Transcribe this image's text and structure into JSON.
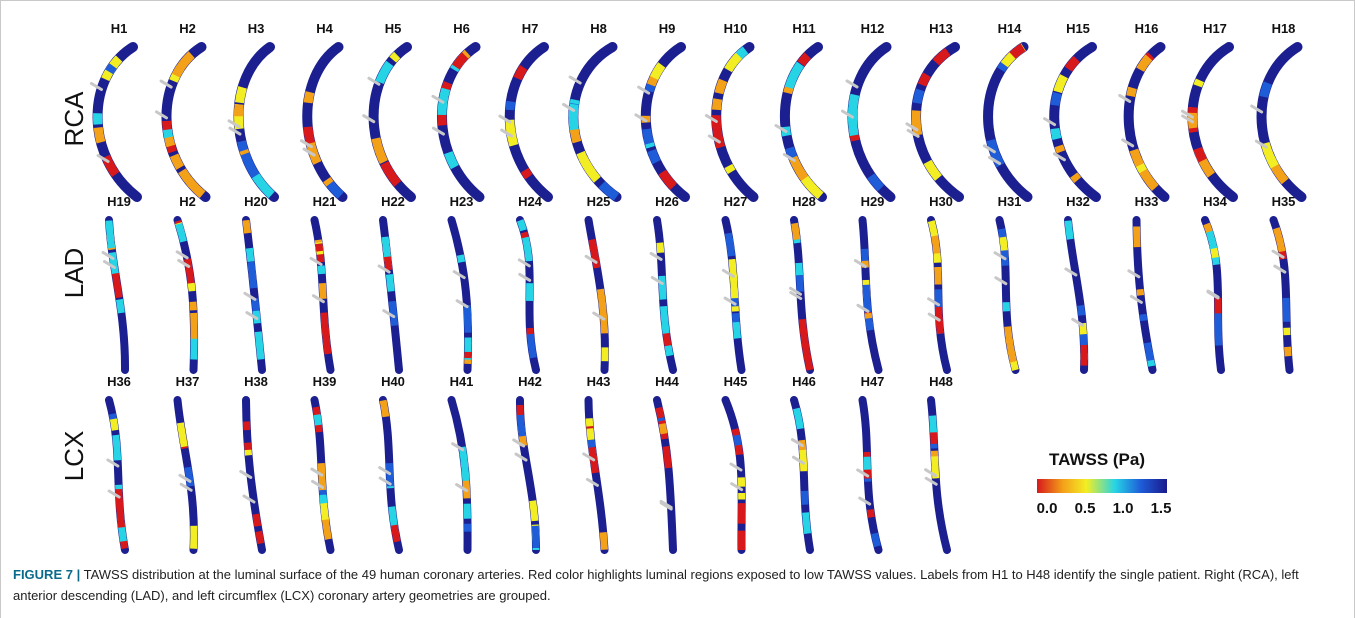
{
  "groups": [
    {
      "name": "RCA",
      "labels": [
        "H1",
        "H2",
        "H3",
        "H4",
        "H5",
        "H6",
        "H7",
        "H8",
        "H9",
        "H10",
        "H11",
        "H12",
        "H13",
        "H14",
        "H15",
        "H16",
        "H17",
        "H18"
      ]
    },
    {
      "name": "LAD",
      "labels": [
        "H19",
        "H2",
        "H20",
        "H21",
        "H22",
        "H23",
        "H24",
        "H25",
        "H26",
        "H27",
        "H28",
        "H29",
        "H30",
        "H31",
        "H32",
        "H33",
        "H34",
        "H35"
      ]
    },
    {
      "name": "LCX",
      "labels": [
        "H36",
        "H37",
        "H38",
        "H39",
        "H40",
        "H41",
        "H42",
        "H43",
        "H44",
        "H45",
        "H46",
        "H47",
        "H48"
      ]
    }
  ],
  "colorbar": {
    "title": "TAWSS (Pa)",
    "ticks": [
      "0.0",
      "0.5",
      "1.0",
      "1.5"
    ],
    "colors": [
      "#d7191c",
      "#f4a11a",
      "#f3ee24",
      "#26d4e6",
      "#1e5cd8",
      "#1a1a8c"
    ]
  },
  "caption": {
    "label": "FIGURE 7 |",
    "text": "TAWSS distribution at the luminal surface of the 49 human coronary arteries. Red color highlights luminal regions exposed to low TAWSS values. Labels from H1 to H48 identify the single patient. Right (RCA), left anterior descending (LAD), and left circumflex (LCX) coronary artery geometries are grouped."
  }
}
